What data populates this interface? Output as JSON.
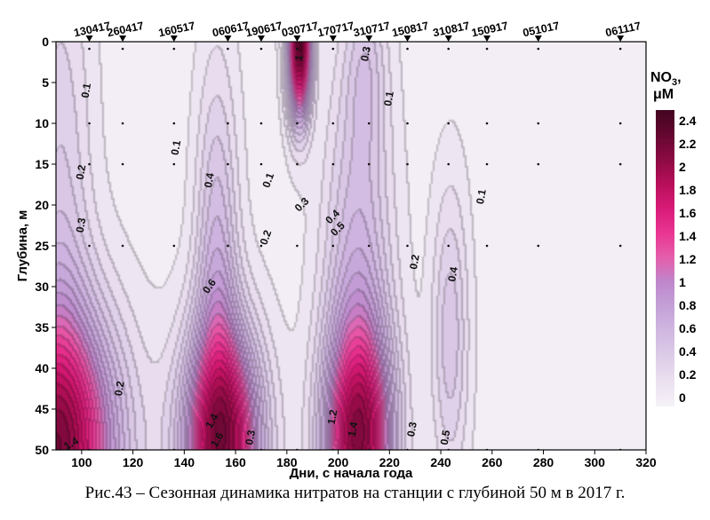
{
  "chart_data": {
    "type": "heatmap",
    "subtype": "contour",
    "title": "",
    "xlabel": "Дни, с начала года",
    "ylabel": "Глубина, м",
    "xlim": [
      90,
      320
    ],
    "ylim": [
      0,
      50
    ],
    "y_inverted": true,
    "x_ticks": [
      100,
      120,
      140,
      160,
      180,
      200,
      220,
      240,
      260,
      280,
      300,
      320
    ],
    "y_ticks": [
      0,
      5,
      10,
      15,
      20,
      25,
      30,
      35,
      40,
      45,
      50
    ],
    "stations": [
      {
        "date": "130417",
        "day": 103
      },
      {
        "date": "260417",
        "day": 116
      },
      {
        "date": "160517",
        "day": 136
      },
      {
        "date": "060617",
        "day": 157
      },
      {
        "date": "190617",
        "day": 170
      },
      {
        "date": "030717",
        "day": 184
      },
      {
        "date": "170717",
        "day": 198
      },
      {
        "date": "310717",
        "day": 212
      },
      {
        "date": "150817",
        "day": 227
      },
      {
        "date": "310817",
        "day": 243
      },
      {
        "date": "150917",
        "day": 258
      },
      {
        "date": "051017",
        "day": 278
      },
      {
        "date": "061117",
        "day": 310
      }
    ],
    "sample_depths": [
      0,
      10,
      15,
      25,
      50
    ],
    "colorbar": {
      "title_main": "NO",
      "title_sub": "3",
      "title_suffix": ",",
      "unit": "μM",
      "levels": [
        0,
        0.2,
        0.4,
        0.6,
        0.8,
        1,
        1.2,
        1.4,
        1.6,
        1.8,
        2,
        2.2,
        2.4
      ],
      "labels": [
        "0",
        "0.2",
        "0.4",
        "0.6",
        "0.8",
        "1",
        "1.2",
        "1.4",
        "1.6",
        "1.8",
        "2",
        "2.2",
        "2.4"
      ],
      "colors": [
        "#f6f2f8",
        "#ebe1f0",
        "#ddcce8",
        "#d1b8e1",
        "#c4a2d8",
        "#bf88cc",
        "#e45fad",
        "#ea3693",
        "#d91b78",
        "#b80f5a",
        "#8c0a42",
        "#640730",
        "#430520"
      ]
    },
    "features": [
      {
        "name": "deep-spring",
        "x": 90,
        "y": 50,
        "rx": 24,
        "ry": 17,
        "peak": 1.9
      },
      {
        "name": "deep-june",
        "x": 155,
        "y": 49,
        "rx": 15,
        "ry": 14,
        "peak": 1.85
      },
      {
        "name": "deep-july",
        "x": 208,
        "y": 49,
        "rx": 13,
        "ry": 14,
        "peak": 1.75
      },
      {
        "name": "surface-july",
        "x": 185,
        "y": 0,
        "rx": 4.5,
        "ry": 9,
        "peak": 2.2
      },
      {
        "name": "ridge-june",
        "x": 153,
        "y": 28,
        "rx": 8,
        "ry": 24,
        "peak": 0.55
      },
      {
        "name": "ridge-july",
        "x": 208,
        "y": 28,
        "rx": 13,
        "ry": 24,
        "peak": 0.55
      },
      {
        "name": "ridge-august",
        "x": 244,
        "y": 36,
        "rx": 7,
        "ry": 18,
        "peak": 0.42
      },
      {
        "name": "ridge-spring",
        "x": 92,
        "y": 20,
        "rx": 12,
        "ry": 34,
        "peak": 0.35
      },
      {
        "name": "surface-august",
        "x": 211,
        "y": 3,
        "rx": 8,
        "ry": 11,
        "peak": 0.3
      }
    ],
    "contour_labels": [
      {
        "text": "0.1",
        "x": 102,
        "y": 6,
        "angle": -80
      },
      {
        "text": "0.2",
        "x": 100,
        "y": 16,
        "angle": -80
      },
      {
        "text": "0.3",
        "x": 100,
        "y": 22.5,
        "angle": -80
      },
      {
        "text": "0.1",
        "x": 137,
        "y": 13,
        "angle": -80
      },
      {
        "text": "0.4",
        "x": 150,
        "y": 17,
        "angle": -80
      },
      {
        "text": "0.6",
        "x": 150,
        "y": 30,
        "angle": -55
      },
      {
        "text": "0.1",
        "x": 173,
        "y": 17,
        "angle": -70
      },
      {
        "text": "0.2",
        "x": 172,
        "y": 24,
        "angle": -70
      },
      {
        "text": "0.3",
        "x": 186,
        "y": 20,
        "angle": -45
      },
      {
        "text": "0.4",
        "x": 198,
        "y": 21.5,
        "angle": -45
      },
      {
        "text": "0.5",
        "x": 200,
        "y": 23,
        "angle": -45
      },
      {
        "text": "1",
        "x": 185,
        "y": 2,
        "angle": -80
      },
      {
        "text": "0.3",
        "x": 211,
        "y": 1.5,
        "angle": -80
      },
      {
        "text": "0.1",
        "x": 220,
        "y": 7,
        "angle": -80
      },
      {
        "text": "0.1",
        "x": 256,
        "y": 19,
        "angle": -80
      },
      {
        "text": "0.2",
        "x": 230,
        "y": 27,
        "angle": -80
      },
      {
        "text": "0.4",
        "x": 245,
        "y": 28.5,
        "angle": -80
      },
      {
        "text": "0.2",
        "x": 115,
        "y": 42.5,
        "angle": -80
      },
      {
        "text": "1.4",
        "x": 151,
        "y": 46.5,
        "angle": -60
      },
      {
        "text": "1.6",
        "x": 153,
        "y": 48.8,
        "angle": -60
      },
      {
        "text": "0.3",
        "x": 166,
        "y": 48.5,
        "angle": -80
      },
      {
        "text": "1.2",
        "x": 198,
        "y": 46,
        "angle": -80
      },
      {
        "text": "1.4",
        "x": 206,
        "y": 47.5,
        "angle": -80
      },
      {
        "text": "0.3",
        "x": 229,
        "y": 47.5,
        "angle": -80
      },
      {
        "text": "0.5",
        "x": 242,
        "y": 48.5,
        "angle": -80
      },
      {
        "text": "1.4",
        "x": 96,
        "y": 49.3,
        "angle": -30
      }
    ]
  },
  "caption": "Рис.43 – Сезонная динамика нитратов на станции с глубиной 50 м в 2017 г."
}
